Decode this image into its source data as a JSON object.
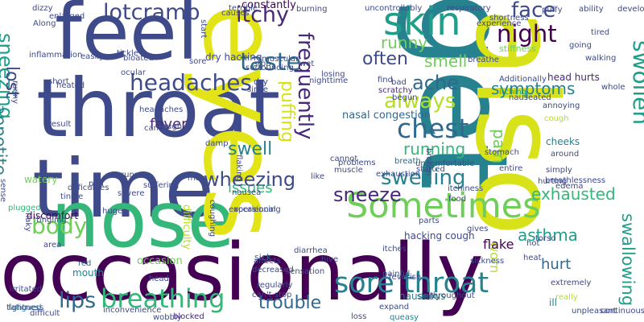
{
  "palette": [
    "#440154",
    "#482878",
    "#3e4a89",
    "#31688e",
    "#26828e",
    "#1f9e89",
    "#35b779",
    "#6ece58",
    "#b5de2b",
    "#fde725"
  ],
  "words": [
    {
      "text": "occasionally",
      "color": "#440154"
    },
    {
      "text": "throat",
      "color": "#3e4a89"
    },
    {
      "text": "time",
      "color": "#3e4a89"
    },
    {
      "text": "feel",
      "color": "#3e4a89"
    },
    {
      "text": "nose",
      "color": "#35b779"
    },
    {
      "text": "eyes",
      "color": "#e2e418"
    },
    {
      "text": "get",
      "color": "#26828e"
    },
    {
      "text": "also",
      "color": "#d8e219"
    },
    {
      "text": "Sometimes",
      "color": "#6ece58"
    },
    {
      "text": "skin",
      "color": "#1f9e89"
    },
    {
      "text": "sore throat",
      "color": "#26828e"
    },
    {
      "text": "breathing",
      "color": "#35b779"
    },
    {
      "text": "headaches",
      "color": "#3e4a89"
    },
    {
      "text": "chest",
      "color": "#31688e"
    },
    {
      "text": "taste",
      "color": "#31688e"
    },
    {
      "text": "lotcramp",
      "color": "#3e4a89"
    },
    {
      "text": "body",
      "color": "#6ece58"
    },
    {
      "text": "night",
      "color": "#440154"
    },
    {
      "text": "face",
      "color": "#3e4a89"
    },
    {
      "text": "itchy",
      "color": "#482878"
    },
    {
      "text": "lips",
      "color": "#31688e"
    },
    {
      "text": "sneezing",
      "color": "#1f9e89"
    },
    {
      "text": "appetite",
      "color": "#26828e"
    },
    {
      "text": "swollen",
      "color": "#1f9e89"
    },
    {
      "text": "swallowing",
      "color": "#1f9e89"
    },
    {
      "text": "frequently",
      "color": "#482878"
    },
    {
      "text": "puffing",
      "color": "#d8e219"
    },
    {
      "text": "always",
      "color": "#b5de2b"
    },
    {
      "text": "swelling",
      "color": "#26828e"
    },
    {
      "text": "sneeze",
      "color": "#482878"
    },
    {
      "text": "wheezing",
      "color": "#3e4a89"
    },
    {
      "text": "asthma",
      "color": "#1f9e89"
    },
    {
      "text": "exhausted",
      "color": "#35b779"
    },
    {
      "text": "trouble",
      "color": "#31688e"
    },
    {
      "text": "symptoms",
      "color": "#26828e"
    },
    {
      "text": "ache",
      "color": "#31688e"
    },
    {
      "text": "smell",
      "color": "#6ece58"
    },
    {
      "text": "often",
      "color": "#3e4a89"
    },
    {
      "text": "runny",
      "color": "#6ece58"
    },
    {
      "text": "lost",
      "color": "#3e4a89"
    },
    {
      "text": "swell",
      "color": "#26828e"
    },
    {
      "text": "issues",
      "color": "#35b779"
    },
    {
      "text": "running",
      "color": "#35b779"
    },
    {
      "text": "fever",
      "color": "#482878"
    },
    {
      "text": "pain",
      "color": "#6ece58"
    },
    {
      "text": "worn",
      "color": "#b5de2b"
    },
    {
      "text": "hurt",
      "color": "#31688e"
    },
    {
      "text": "constantly",
      "color": "#440154"
    },
    {
      "text": "hacking cough",
      "color": "#3e4a89"
    },
    {
      "text": "head hurts",
      "color": "#482878"
    },
    {
      "text": "nasal congestion",
      "color": "#31688e"
    },
    {
      "text": "flake",
      "color": "#440154"
    },
    {
      "text": "occasion",
      "color": "#6ece58"
    },
    {
      "text": "watery",
      "color": "#6ece58"
    },
    {
      "text": "can't stop",
      "color": "#3e4a89"
    },
    {
      "text": "cheeks",
      "color": "#26828e"
    },
    {
      "text": "stiffness",
      "color": "#6ece58"
    },
    {
      "text": "really",
      "color": "#b5de2b"
    },
    {
      "text": "dry hacking",
      "color": "#3e4a89"
    },
    {
      "text": "breath",
      "color": "#31688e"
    },
    {
      "text": "discomfort",
      "color": "#440154"
    },
    {
      "text": "muscle",
      "color": "#3e4a89"
    },
    {
      "text": "difficulty",
      "color": "#b5de2b"
    },
    {
      "text": "mouth",
      "color": "#26828e"
    },
    {
      "text": "red",
      "color": "#31688e"
    },
    {
      "text": "losing",
      "color": "#3e4a89"
    },
    {
      "text": "around",
      "color": "#3e4a89"
    },
    {
      "text": "started",
      "color": "#3e4a89"
    },
    {
      "text": "regularly",
      "color": "#3e4a89"
    },
    {
      "text": "dry",
      "color": "#3e4a89"
    },
    {
      "text": "blocked",
      "color": "#482878"
    },
    {
      "text": "plugged",
      "color": "#35b779"
    },
    {
      "text": "fatigued",
      "color": "#26828e"
    },
    {
      "text": "cough",
      "color": "#b5de2b"
    },
    {
      "text": "scratchy",
      "color": "#482878"
    },
    {
      "text": "itching",
      "color": "#1f9e89"
    },
    {
      "text": "sick",
      "color": "#31688e"
    },
    {
      "text": "nauseous",
      "color": "#26828e"
    },
    {
      "text": "queasy",
      "color": "#26828e"
    },
    {
      "text": "shaky",
      "color": "#31688e"
    },
    {
      "text": "ill",
      "color": "#26828e"
    },
    {
      "text": "puffy",
      "color": "#3e4a89"
    },
    {
      "text": "tired",
      "color": "#3e4a89"
    },
    {
      "text": "developed",
      "color": "#3e4a89"
    },
    {
      "text": "ability",
      "color": "#3e4a89"
    },
    {
      "text": "Additionally",
      "color": "#3e4a89"
    },
    {
      "text": "problems",
      "color": "#3e4a89"
    },
    {
      "text": "entire",
      "color": "#3e4a89"
    },
    {
      "text": "unpleasant",
      "color": "#3e4a89"
    },
    {
      "text": "continuously",
      "color": "#3e4a89"
    },
    {
      "text": "extremely",
      "color": "#3e4a89"
    },
    {
      "text": "whole",
      "color": "#3e4a89"
    },
    {
      "text": "going",
      "color": "#3e4a89"
    },
    {
      "text": "sense",
      "color": "#3e4a89"
    },
    {
      "text": "tightness",
      "color": "#3e4a89"
    },
    {
      "text": "tingle",
      "color": "#3e4a89"
    },
    {
      "text": "tickle",
      "color": "#3e4a89"
    },
    {
      "text": "easily",
      "color": "#3e4a89"
    },
    {
      "text": "puff",
      "color": "#3e4a89"
    },
    {
      "text": "runs",
      "color": "#3e4a89"
    },
    {
      "text": "huge",
      "color": "#3e4a89"
    },
    {
      "text": "nausea",
      "color": "#3e4a89"
    },
    {
      "text": "diarrhea",
      "color": "#3e4a89"
    },
    {
      "text": "sensation",
      "color": "#3e4a89"
    },
    {
      "text": "decreased",
      "color": "#3e4a89"
    },
    {
      "text": "affects",
      "color": "#3e4a89"
    },
    {
      "text": "painful",
      "color": "#3e4a89"
    },
    {
      "text": "parts",
      "color": "#3e4a89"
    },
    {
      "text": "gives",
      "color": "#3e4a89"
    },
    {
      "text": "sickness",
      "color": "#3e4a89"
    },
    {
      "text": "heat",
      "color": "#3e4a89"
    },
    {
      "text": "hot",
      "color": "#3e4a89"
    },
    {
      "text": "torso",
      "color": "#3e4a89"
    },
    {
      "text": "itchiness",
      "color": "#3e4a89"
    },
    {
      "text": "expand",
      "color": "#3e4a89"
    },
    {
      "text": "throughout",
      "color": "#3e4a89"
    },
    {
      "text": "inconvenience",
      "color": "#3e4a89"
    },
    {
      "text": "wobbly",
      "color": "#3e4a89"
    },
    {
      "text": "irritated",
      "color": "#3e4a89"
    },
    {
      "text": "difficult",
      "color": "#3e4a89"
    },
    {
      "text": "start",
      "color": "#3e4a89"
    },
    {
      "text": "stop",
      "color": "#3e4a89"
    },
    {
      "text": "wet",
      "color": "#3e4a89"
    },
    {
      "text": "bad",
      "color": "#3e4a89"
    },
    {
      "text": "begun",
      "color": "#3e4a89"
    },
    {
      "text": "breathe",
      "color": "#3e4a89"
    },
    {
      "text": "dizzy",
      "color": "#3e4a89"
    },
    {
      "text": "enlarged",
      "color": "#3e4a89"
    },
    {
      "text": "short",
      "color": "#3e4a89"
    },
    {
      "text": "suffering",
      "color": "#3e4a89"
    },
    {
      "text": "headaches",
      "color": "#3e4a89"
    },
    {
      "text": "ocular",
      "color": "#3e4a89"
    },
    {
      "text": "hurting",
      "color": "#3e4a89"
    },
    {
      "text": "annoying",
      "color": "#3e4a89"
    },
    {
      "text": "simply",
      "color": "#3e4a89"
    },
    {
      "text": "edema",
      "color": "#3e4a89"
    },
    {
      "text": "stomach",
      "color": "#3e4a89"
    },
    {
      "text": "bloated",
      "color": "#3e4a89"
    },
    {
      "text": "causes",
      "color": "#3e4a89"
    },
    {
      "text": "terrible",
      "color": "#3e4a89"
    },
    {
      "text": "burning",
      "color": "#3e4a89"
    },
    {
      "text": "uncontrollably",
      "color": "#3e4a89"
    },
    {
      "text": "respiratory",
      "color": "#3e4a89"
    },
    {
      "text": "experience",
      "color": "#3e4a89"
    },
    {
      "text": "shortness",
      "color": "#3e4a89"
    },
    {
      "text": "Along",
      "color": "#3e4a89"
    },
    {
      "text": "inflammation",
      "color": "#3e4a89"
    },
    {
      "text": "heated",
      "color": "#3e4a89"
    },
    {
      "text": "result",
      "color": "#3e4a89"
    },
    {
      "text": "runny",
      "color": "#3e4a89"
    },
    {
      "text": "cant",
      "color": "#3e4a89"
    },
    {
      "text": "tough",
      "color": "#3e4a89"
    },
    {
      "text": "severe",
      "color": "#3e4a89"
    },
    {
      "text": "flaky",
      "color": "#3e4a89"
    },
    {
      "text": "difficulties",
      "color": "#3e4a89"
    },
    {
      "text": "tingling",
      "color": "#3e4a89"
    },
    {
      "text": "area",
      "color": "#3e4a89"
    },
    {
      "text": "head",
      "color": "#3e4a89"
    },
    {
      "text": "hive",
      "color": "#3e4a89"
    },
    {
      "text": "feverish",
      "color": "#3e4a89"
    },
    {
      "text": "itches",
      "color": "#3e4a89"
    },
    {
      "text": "nighttime",
      "color": "#3e4a89"
    },
    {
      "text": "since",
      "color": "#3e4a89"
    },
    {
      "text": "muscular",
      "color": "#3e4a89"
    },
    {
      "text": "surrounding",
      "color": "#3e4a89"
    },
    {
      "text": "sore",
      "color": "#3e4a89"
    },
    {
      "text": "damp",
      "color": "#3e4a89"
    },
    {
      "text": "coughing",
      "color": "#3e4a89"
    },
    {
      "text": "occasional",
      "color": "#3e4a89"
    },
    {
      "text": "experiencing",
      "color": "#3e4a89"
    },
    {
      "text": "may",
      "color": "#3e4a89"
    },
    {
      "text": "find",
      "color": "#3e4a89"
    },
    {
      "text": "exhaustion",
      "color": "#3e4a89"
    },
    {
      "text": "uncomfortable",
      "color": "#3e4a89"
    },
    {
      "text": "breathlessness",
      "color": "#3e4a89"
    },
    {
      "text": "nauseated",
      "color": "#3e4a89"
    },
    {
      "text": "walking",
      "color": "#3e4a89"
    },
    {
      "text": "cannot",
      "color": "#3e4a89"
    },
    {
      "text": "food",
      "color": "#3e4a89"
    },
    {
      "text": "loss",
      "color": "#3e4a89"
    },
    {
      "text": "like",
      "color": "#3e4a89"
    },
    {
      "text": "flaking",
      "color": "#3e4a89"
    },
    {
      "text": "broken",
      "color": "#3e4a89"
    }
  ]
}
